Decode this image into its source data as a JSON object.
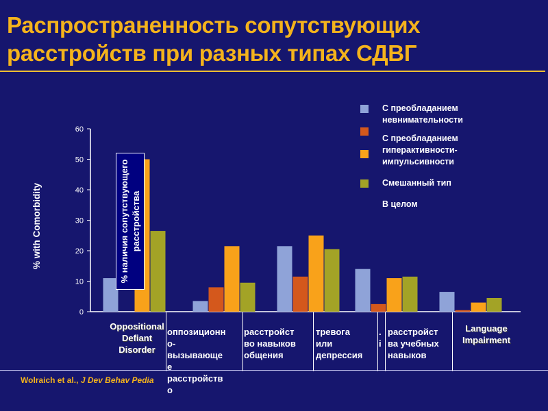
{
  "title": {
    "line1": "Распространенность сопутствующих",
    "line2": "расстройств при разных типах СДВГ"
  },
  "citation": {
    "authors": "Wolraich et al., ",
    "journal": "J Dev Behav Pedia"
  },
  "colors": {
    "background": "#16166e",
    "title": "#f4b31c",
    "inattentive": "#8fa3d8",
    "hyperactive": "#d4581c",
    "impulsive": "#f9a21a",
    "combined": "#a3a326"
  },
  "legend": [
    {
      "label": "С преобладанием\nневнимательности",
      "color": "#8fa3d8"
    },
    {
      "label": "С преобладанием\nгиперактивности-\nимпульсивности",
      "color": "#d4581c"
    },
    {
      "label": "",
      "color": "#f9a21a"
    },
    {
      "label": "Смешанный тип",
      "color": "#a3a326"
    },
    {
      "label": "В целом",
      "color": ""
    }
  ],
  "overlay_label": "% наличия сопутствующего\nрасстройства",
  "category_labels": {
    "c1": "Oppositional\nDefiant\nDisorder",
    "c2": "оппозиционн\nо-\nвызывающе\nе\nрасстройств\nо",
    "c3": "расстройст\nво навыков\nобщения",
    "c4": "тревога\nили\nдепрессия",
    "c5_frag": ".\ni",
    "c6": "расстройст\nва учебных\nнавыков",
    "c7": "Language\nImpairment"
  },
  "chart_data": {
    "type": "bar",
    "ylabel": "% with Comorbidity",
    "ylim": [
      0,
      60
    ],
    "yticks": [
      "0",
      "10",
      "20",
      "30",
      "40",
      "50",
      "60"
    ],
    "categories": [
      "Oppositional Defiant Disorder",
      "расстройство навыков общения",
      "тревога или депрессия",
      "расстройства учебных навыков",
      "",
      "Language Impairment"
    ],
    "series": [
      {
        "name": "С преобладанием невнимательности",
        "color": "#8fa3d8",
        "values": [
          11,
          3.5,
          21.5,
          14,
          6.5,
          0
        ]
      },
      {
        "name": "С преобладанием гиперактивности-импульсивности",
        "color": "#d4581c",
        "values": [
          0,
          8,
          11.5,
          2.5,
          0.5,
          0
        ]
      },
      {
        "name": "",
        "color": "#f9a21a",
        "values": [
          50,
          21.5,
          25,
          11,
          3,
          0
        ]
      },
      {
        "name": "Смешанный тип",
        "color": "#a3a326",
        "values": [
          26.5,
          9.5,
          20.5,
          11.5,
          4.5,
          0
        ]
      }
    ],
    "grid": false,
    "legend_position": "top-right"
  }
}
